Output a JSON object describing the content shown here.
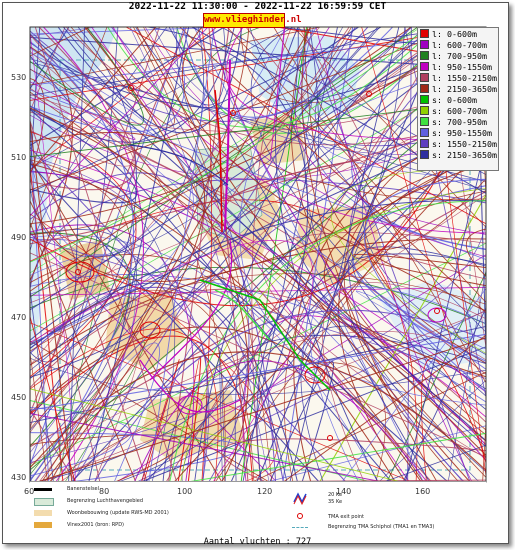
{
  "header": {
    "title": "2022-11-22 11:30:00 - 2022-11-22 16:59:59 CET",
    "site": "www.vlieghinder.nl"
  },
  "axes": {
    "yticks": [
      "530",
      "510",
      "490",
      "470",
      "450",
      "430"
    ],
    "xticks": [
      "60",
      "80",
      "100",
      "120",
      "140",
      "160"
    ]
  },
  "legend": [
    {
      "label": "l: 0-600m",
      "color": "#e00000"
    },
    {
      "label": "l: 600-700m",
      "color": "#a000c0"
    },
    {
      "label": "l: 700-950m",
      "color": "#208020"
    },
    {
      "label": "l: 950-1550m",
      "color": "#c000c0"
    },
    {
      "label": "l: 1550-2150m",
      "color": "#b04060"
    },
    {
      "label": "l: 2150-3650m",
      "color": "#a02818"
    },
    {
      "label": "s: 0-600m",
      "color": "#00c000"
    },
    {
      "label": "s: 600-700m",
      "color": "#90d000"
    },
    {
      "label": "s: 700-950m",
      "color": "#40e040"
    },
    {
      "label": "s: 950-1550m",
      "color": "#6060e0"
    },
    {
      "label": "s: 1550-2150m",
      "color": "#6040c0"
    },
    {
      "label": "s: 2150-3650m",
      "color": "#3030a0"
    }
  ],
  "bottom_legend": {
    "runway": "Banenstelsel",
    "airport_boundary": "Begrenzing Luchthavengebied",
    "housing": "Woonbebouwing (update RWS-MD 2001)",
    "vinex": "Vinex2001 (bron: RPD)",
    "ke20": "20 Ke",
    "ke35": "35 Ke",
    "tma_exit": "TMA exit point",
    "tma_boundary": "Begrenzing TMA Schiphol  (TMA1 en TMA3)"
  },
  "footer": {
    "count": "Aantal vluchten : 727"
  }
}
